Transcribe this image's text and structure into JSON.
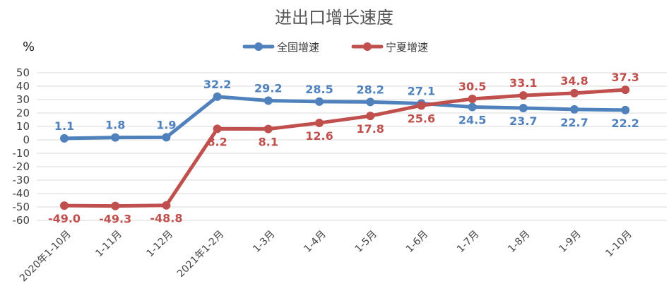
{
  "chart_data": {
    "type": "line",
    "title": "进出口增长速度",
    "ylabel": "%",
    "xlabel": "",
    "ylim": [
      -60,
      50
    ],
    "yticks": [
      50,
      40,
      30,
      20,
      10,
      0,
      -10,
      -20,
      -30,
      -40,
      -50,
      -60
    ],
    "grid": true,
    "legend_position": "top",
    "categories": [
      "2020年1-10月",
      "1-11月",
      "1-12月",
      "2021年1-2月",
      "1-3月",
      "1-4月",
      "1-5月",
      "1-6月",
      "1-7月",
      "1-8月",
      "1-9月",
      "1-10月"
    ],
    "series": [
      {
        "name": "全国增速",
        "color": "#4F81BD",
        "values": [
          1.1,
          1.8,
          1.9,
          32.2,
          29.2,
          28.5,
          28.2,
          27.1,
          24.5,
          23.7,
          22.7,
          22.2
        ],
        "labels": [
          "1.1",
          "1.8",
          "1.9",
          "32.2",
          "29.2",
          "28.5",
          "28.2",
          "27.1",
          "24.5",
          "23.7",
          "22.7",
          "22.2"
        ],
        "label_side": [
          "above",
          "above",
          "above",
          "above",
          "above",
          "above",
          "above",
          "above",
          "below",
          "below",
          "below",
          "below"
        ]
      },
      {
        "name": "宁夏增速",
        "color": "#C0504D",
        "values": [
          -49.0,
          -49.3,
          -48.8,
          8.2,
          8.1,
          12.6,
          17.8,
          25.6,
          30.5,
          33.1,
          34.8,
          37.3
        ],
        "labels": [
          "-49.0",
          "-49.3",
          "-48.8",
          "8.2",
          "8.1",
          "12.6",
          "17.8",
          "25.6",
          "30.5",
          "33.1",
          "34.8",
          "37.3"
        ],
        "label_side": [
          "below",
          "below",
          "below",
          "below",
          "below",
          "below",
          "below",
          "below",
          "above",
          "above",
          "above",
          "above"
        ]
      }
    ]
  }
}
